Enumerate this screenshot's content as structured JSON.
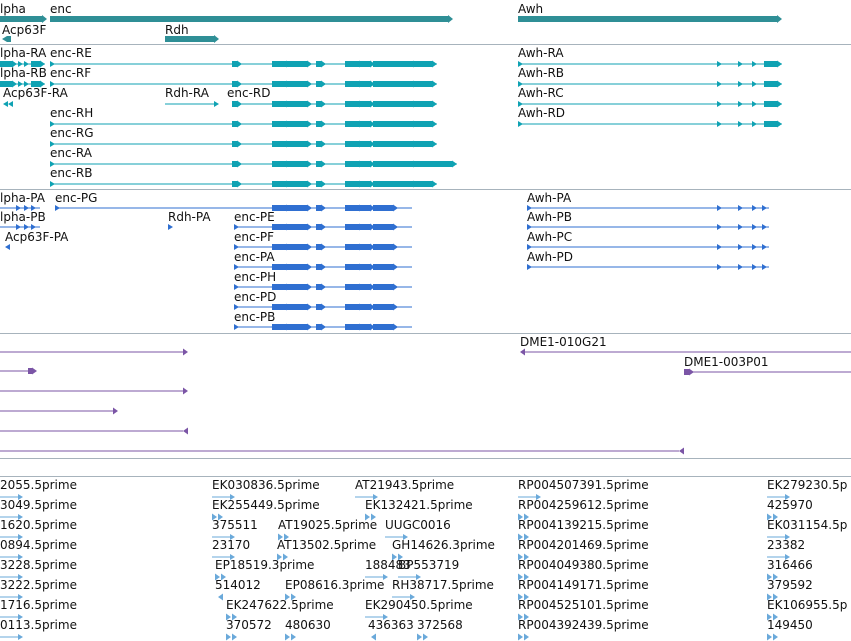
{
  "colors": {
    "gene": "#2f8f96",
    "transcript": "#0fa2b3",
    "protein": "#2f6fd1",
    "clone": "#7b55a6",
    "est": "#6aa9da",
    "divider": "#a7b3bc"
  },
  "genes": [
    {
      "label": "lpha"
    },
    {
      "label": "enc"
    },
    {
      "label": "Awh"
    },
    {
      "label": "Acp63F"
    },
    {
      "label": "Rdh"
    }
  ],
  "transcripts": [
    {
      "label": "lpha-RA"
    },
    {
      "label": "enc-RE"
    },
    {
      "label": "Awh-RA"
    },
    {
      "label": "lpha-RB"
    },
    {
      "label": "enc-RF"
    },
    {
      "label": "Awh-RB"
    },
    {
      "label": "Acp63F-RA"
    },
    {
      "label": "Rdh-RA"
    },
    {
      "label": "enc-RD"
    },
    {
      "label": "Awh-RC"
    },
    {
      "label": "enc-RH"
    },
    {
      "label": "Awh-RD"
    },
    {
      "label": "enc-RG"
    },
    {
      "label": "enc-RA"
    },
    {
      "label": "enc-RB"
    }
  ],
  "proteins": [
    {
      "label": "lpha-PA"
    },
    {
      "label": "enc-PG"
    },
    {
      "label": "Awh-PA"
    },
    {
      "label": "lpha-PB"
    },
    {
      "label": "Rdh-PA"
    },
    {
      "label": "enc-PE"
    },
    {
      "label": "Awh-PB"
    },
    {
      "label": "Acp63F-PA"
    },
    {
      "label": "enc-PF"
    },
    {
      "label": "Awh-PC"
    },
    {
      "label": "enc-PA"
    },
    {
      "label": "Awh-PD"
    },
    {
      "label": "enc-PH"
    },
    {
      "label": "enc-PD"
    },
    {
      "label": "enc-PB"
    }
  ],
  "clones": [
    {
      "label": "DME1-010G21"
    },
    {
      "label": "DME1-003P01"
    }
  ],
  "ests": [
    {
      "label": "2055.5prime"
    },
    {
      "label": "EK030836.5prime"
    },
    {
      "label": "AT21943.5prime"
    },
    {
      "label": "RP004507391.5prime"
    },
    {
      "label": "EK279230.5p"
    },
    {
      "label": "3049.5prime"
    },
    {
      "label": "EK255449.5prime"
    },
    {
      "label": "EK132421.5prime"
    },
    {
      "label": "RP004259612.5prime"
    },
    {
      "label": "425970"
    },
    {
      "label": "1620.5prime"
    },
    {
      "label": "375511"
    },
    {
      "label": "AT19025.5prime"
    },
    {
      "label": "UUGC0016"
    },
    {
      "label": "RP004139215.5prime"
    },
    {
      "label": "EK031154.5p"
    },
    {
      "label": "0894.5prime"
    },
    {
      "label": "23170"
    },
    {
      "label": "AT13502.5prime"
    },
    {
      "label": "GH14626.3prime"
    },
    {
      "label": "RP004201469.5prime"
    },
    {
      "label": "23382"
    },
    {
      "label": "3228.5prime"
    },
    {
      "label": "EP18519.3prime"
    },
    {
      "label": "188483"
    },
    {
      "label": "BP553719"
    },
    {
      "label": "RP004049380.5prime"
    },
    {
      "label": "316466"
    },
    {
      "label": "3222.5prime"
    },
    {
      "label": "514012"
    },
    {
      "label": "EP08616.3prime"
    },
    {
      "label": "RH38717.5prime"
    },
    {
      "label": "RP004149171.5prime"
    },
    {
      "label": "379592"
    },
    {
      "label": "1716.5prime"
    },
    {
      "label": "EK247622.5prime"
    },
    {
      "label": "EK290450.5prime"
    },
    {
      "label": "RP004525101.5prime"
    },
    {
      "label": "EK106955.5p"
    },
    {
      "label": "0113.5prime"
    },
    {
      "label": "370572"
    },
    {
      "label": "480630"
    },
    {
      "label": "436363"
    },
    {
      "label": "372568"
    },
    {
      "label": "RP004392439.5prime"
    },
    {
      "label": "149450"
    }
  ]
}
